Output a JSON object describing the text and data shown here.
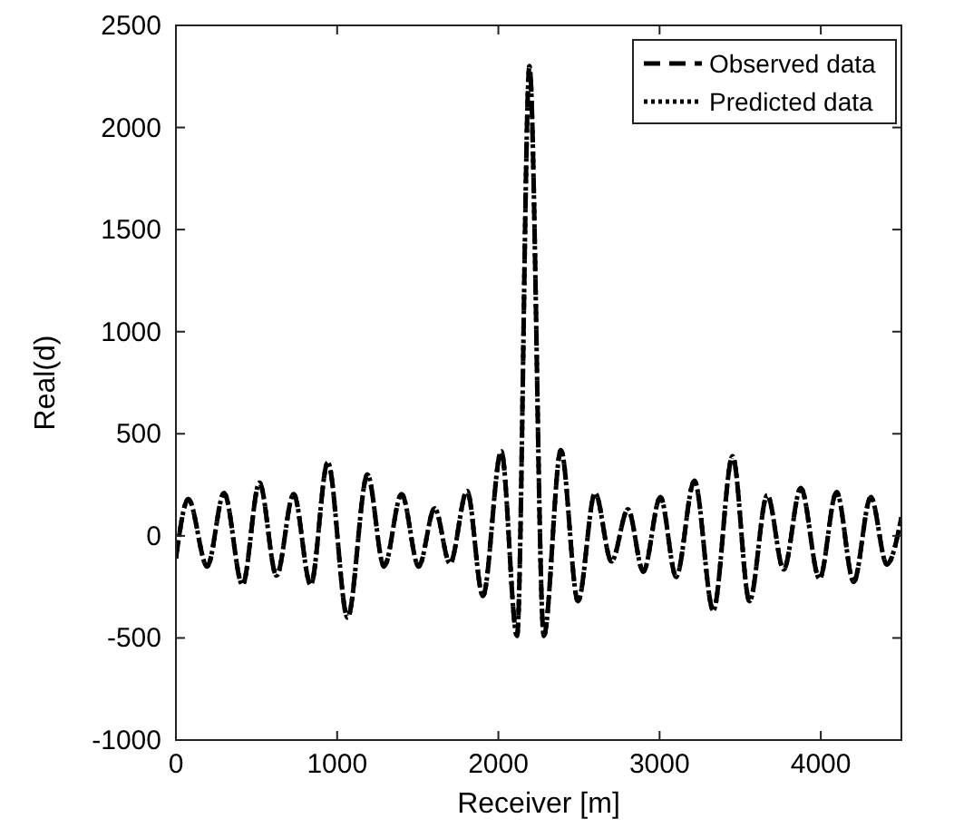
{
  "chart_data": {
    "type": "line",
    "xlabel": "Receiver [m]",
    "ylabel": "Real(d)",
    "x": [
      0,
      77,
      194,
      299,
      413,
      518,
      624,
      730,
      836,
      942,
      1065,
      1188,
      1291,
      1400,
      1506,
      1605,
      1700,
      1806,
      1904,
      2018,
      2116,
      2193,
      2282,
      2388,
      2494,
      2600,
      2702,
      2804,
      2899,
      3005,
      3103,
      3216,
      3333,
      3453,
      3558,
      3668,
      3770,
      3876,
      3992,
      4098,
      4204,
      4310,
      4410,
      4500
    ],
    "series": [
      {
        "name": "Observed data",
        "color": "#000000",
        "line_style": "dashed",
        "values": [
          -110,
          180,
          -150,
          210,
          -240,
          260,
          -195,
          205,
          -240,
          360,
          -400,
          300,
          -150,
          205,
          -150,
          135,
          -135,
          220,
          -295,
          415,
          -490,
          2300,
          -490,
          420,
          -320,
          210,
          -125,
          130,
          -175,
          190,
          -200,
          270,
          -365,
          390,
          -320,
          200,
          -165,
          235,
          -210,
          215,
          -225,
          190,
          -140,
          90
        ]
      },
      {
        "name": "Predicted data",
        "color": "#000000",
        "line_style": "dotted",
        "values": [
          -110,
          180,
          -150,
          210,
          -240,
          260,
          -195,
          205,
          -240,
          360,
          -400,
          300,
          -150,
          205,
          -150,
          135,
          -135,
          220,
          -295,
          415,
          -490,
          2300,
          -490,
          420,
          -320,
          210,
          -125,
          130,
          -175,
          190,
          -200,
          270,
          -365,
          390,
          -320,
          200,
          -165,
          235,
          -210,
          215,
          -225,
          190,
          -140,
          90
        ]
      }
    ],
    "xlim": [
      0,
      4500
    ],
    "xticks": [
      0,
      1000,
      2000,
      3000,
      4000
    ],
    "ylim": [
      -1000,
      2500
    ],
    "yticks": [
      -1000,
      -500,
      0,
      500,
      1000,
      1500,
      2000,
      2500
    ],
    "grid": false,
    "legend": "top right"
  }
}
